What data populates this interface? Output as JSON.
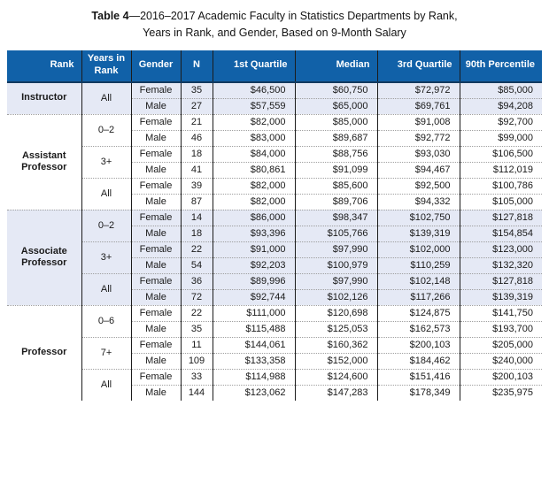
{
  "title": {
    "prefix": "Table 4",
    "line1_rest": "—2016–2017 Academic Faculty in Statistics Departments by Rank,",
    "line2": "Years in Rank, and Gender, Based on 9-Month Salary"
  },
  "table": {
    "columns": [
      "Rank",
      "Years in Rank",
      "Gender",
      "N",
      "1st Quartile",
      "Median",
      "3rd Quartile",
      "90th Percentile"
    ],
    "groups": [
      {
        "rank": "Instructor",
        "shaded": true,
        "year_groups": [
          {
            "years": "All",
            "rows": [
              {
                "gender": "Female",
                "n": "35",
                "q1": "$46,500",
                "median": "$60,750",
                "q3": "$72,972",
                "p90": "$85,000"
              },
              {
                "gender": "Male",
                "n": "27",
                "q1": "$57,559",
                "median": "$65,000",
                "q3": "$69,761",
                "p90": "$94,208"
              }
            ]
          }
        ]
      },
      {
        "rank": "Assistant Professor",
        "shaded": false,
        "year_groups": [
          {
            "years": "0–2",
            "rows": [
              {
                "gender": "Female",
                "n": "21",
                "q1": "$82,000",
                "median": "$85,000",
                "q3": "$91,008",
                "p90": "$92,700"
              },
              {
                "gender": "Male",
                "n": "46",
                "q1": "$83,000",
                "median": "$89,687",
                "q3": "$92,772",
                "p90": "$99,000"
              }
            ]
          },
          {
            "years": "3+",
            "rows": [
              {
                "gender": "Female",
                "n": "18",
                "q1": "$84,000",
                "median": "$88,756",
                "q3": "$93,030",
                "p90": "$106,500"
              },
              {
                "gender": "Male",
                "n": "41",
                "q1": "$80,861",
                "median": "$91,099",
                "q3": "$94,467",
                "p90": "$112,019"
              }
            ]
          },
          {
            "years": "All",
            "rows": [
              {
                "gender": "Female",
                "n": "39",
                "q1": "$82,000",
                "median": "$85,600",
                "q3": "$92,500",
                "p90": "$100,786"
              },
              {
                "gender": "Male",
                "n": "87",
                "q1": "$82,000",
                "median": "$89,706",
                "q3": "$94,332",
                "p90": "$105,000"
              }
            ]
          }
        ]
      },
      {
        "rank": "Associate Professor",
        "shaded": true,
        "year_groups": [
          {
            "years": "0–2",
            "rows": [
              {
                "gender": "Female",
                "n": "14",
                "q1": "$86,000",
                "median": "$98,347",
                "q3": "$102,750",
                "p90": "$127,818"
              },
              {
                "gender": "Male",
                "n": "18",
                "q1": "$93,396",
                "median": "$105,766",
                "q3": "$139,319",
                "p90": "$154,854"
              }
            ]
          },
          {
            "years": "3+",
            "rows": [
              {
                "gender": "Female",
                "n": "22",
                "q1": "$91,000",
                "median": "$97,990",
                "q3": "$102,000",
                "p90": "$123,000"
              },
              {
                "gender": "Male",
                "n": "54",
                "q1": "$92,203",
                "median": "$100,979",
                "q3": "$110,259",
                "p90": "$132,320"
              }
            ]
          },
          {
            "years": "All",
            "rows": [
              {
                "gender": "Female",
                "n": "36",
                "q1": "$89,996",
                "median": "$97,990",
                "q3": "$102,148",
                "p90": "$127,818"
              },
              {
                "gender": "Male",
                "n": "72",
                "q1": "$92,744",
                "median": "$102,126",
                "q3": "$117,266",
                "p90": "$139,319"
              }
            ]
          }
        ]
      },
      {
        "rank": "Professor",
        "shaded": false,
        "year_groups": [
          {
            "years": "0–6",
            "rows": [
              {
                "gender": "Female",
                "n": "22",
                "q1": "$111,000",
                "median": "$120,698",
                "q3": "$124,875",
                "p90": "$141,750"
              },
              {
                "gender": "Male",
                "n": "35",
                "q1": "$115,488",
                "median": "$125,053",
                "q3": "$162,573",
                "p90": "$193,700"
              }
            ]
          },
          {
            "years": "7+",
            "rows": [
              {
                "gender": "Female",
                "n": "11",
                "q1": "$144,061",
                "median": "$160,362",
                "q3": "$200,103",
                "p90": "$205,000"
              },
              {
                "gender": "Male",
                "n": "109",
                "q1": "$133,358",
                "median": "$152,000",
                "q3": "$184,462",
                "p90": "$240,000"
              }
            ]
          },
          {
            "years": "All",
            "rows": [
              {
                "gender": "Female",
                "n": "33",
                "q1": "$114,988",
                "median": "$124,600",
                "q3": "$151,416",
                "p90": "$200,103"
              },
              {
                "gender": "Male",
                "n": "144",
                "q1": "$123,062",
                "median": "$147,283",
                "q3": "$178,349",
                "p90": "$235,975"
              }
            ]
          }
        ]
      }
    ]
  },
  "colors": {
    "header_bg": "#1161a8",
    "header_text": "#ffffff",
    "shaded_row_bg": "#e5e9f5",
    "grid_line": "#1c1c1c",
    "dotted_line": "#9f9f9f",
    "header_underline": "#12395f"
  }
}
